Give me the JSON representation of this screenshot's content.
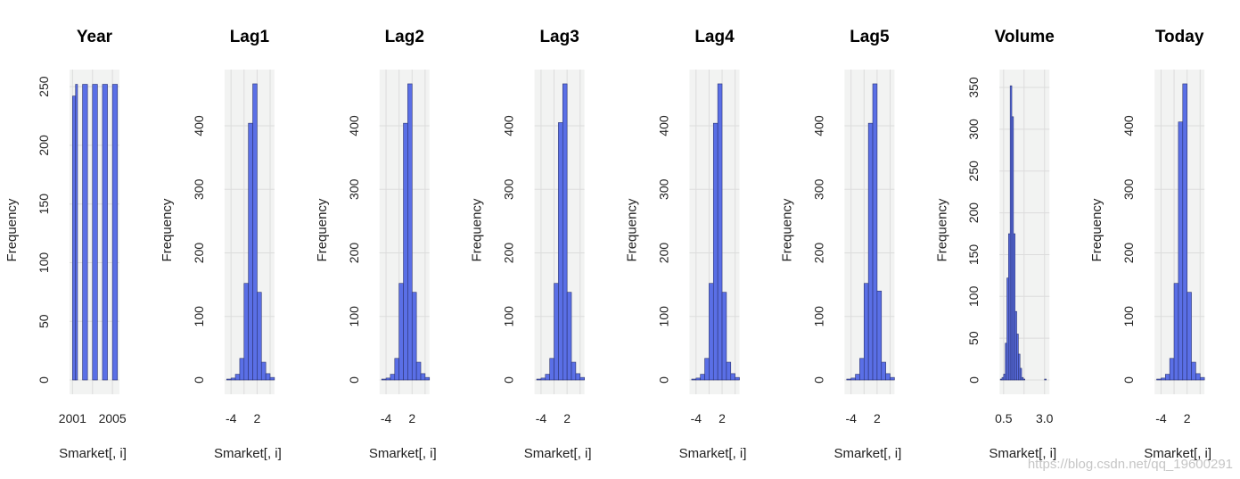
{
  "watermark": "https://blog.csdn.net/qq_19600291",
  "colors": {
    "bar_fill": "#5a6fe6",
    "bar_stroke": "#2b3370",
    "panel_bg": "#f2f3f2",
    "grid": "#dcdcdc"
  },
  "chart_data": [
    {
      "type": "bar",
      "title": "Year",
      "xlabel": "Smarket[, i]",
      "ylabel": "Frequency",
      "xlim": [
        2000.7,
        2005.7
      ],
      "x_ticks": [
        2001,
        2005
      ],
      "x_tick_labels": [
        "2001",
        "2005"
      ],
      "ylim": [
        0,
        260
      ],
      "y_ticks": [
        0,
        50,
        100,
        150,
        200,
        250
      ],
      "bins": [
        [
          2001.0,
          2001.3
        ],
        [
          2001.3,
          2001.5
        ],
        [
          2002.0,
          2002.5
        ],
        [
          2003.0,
          2003.5
        ],
        [
          2004.0,
          2004.5
        ],
        [
          2005.0,
          2005.5
        ]
      ],
      "values": [
        242,
        252,
        252,
        252,
        252,
        252
      ]
    },
    {
      "type": "bar",
      "title": "Lag1",
      "xlabel": "Smarket[, i]",
      "ylabel": "Frequency",
      "xlim": [
        -5.5,
        6
      ],
      "x_ticks": [
        -4,
        2
      ],
      "x_tick_labels": [
        "-4",
        "2"
      ],
      "ylim": [
        0,
        480
      ],
      "y_ticks": [
        0,
        100,
        200,
        300,
        400
      ],
      "bin_start": -5,
      "bin_width": 1,
      "values": [
        1,
        3,
        9,
        34,
        152,
        404,
        466,
        138,
        28,
        10,
        4
      ]
    },
    {
      "type": "bar",
      "title": "Lag2",
      "xlabel": "Smarket[, i]",
      "ylabel": "Frequency",
      "xlim": [
        -5.5,
        6
      ],
      "x_ticks": [
        -4,
        2
      ],
      "x_tick_labels": [
        "-4",
        "2"
      ],
      "ylim": [
        0,
        480
      ],
      "y_ticks": [
        0,
        100,
        200,
        300,
        400
      ],
      "bin_start": -5,
      "bin_width": 1,
      "values": [
        1,
        3,
        9,
        34,
        152,
        404,
        466,
        138,
        28,
        10,
        4
      ]
    },
    {
      "type": "bar",
      "title": "Lag3",
      "xlabel": "Smarket[, i]",
      "ylabel": "Frequency",
      "xlim": [
        -5.5,
        6
      ],
      "x_ticks": [
        -4,
        2
      ],
      "x_tick_labels": [
        "-4",
        "2"
      ],
      "ylim": [
        0,
        480
      ],
      "y_ticks": [
        0,
        100,
        200,
        300,
        400
      ],
      "bin_start": -5,
      "bin_width": 1,
      "values": [
        1,
        3,
        9,
        34,
        152,
        405,
        466,
        138,
        28,
        10,
        4
      ]
    },
    {
      "type": "bar",
      "title": "Lag4",
      "xlabel": "Smarket[, i]",
      "ylabel": "Frequency",
      "xlim": [
        -5.5,
        6
      ],
      "x_ticks": [
        -4,
        2
      ],
      "x_tick_labels": [
        "-4",
        "2"
      ],
      "ylim": [
        0,
        480
      ],
      "y_ticks": [
        0,
        100,
        200,
        300,
        400
      ],
      "bin_start": -5,
      "bin_width": 1,
      "values": [
        1,
        3,
        9,
        34,
        152,
        404,
        466,
        138,
        28,
        10,
        4
      ]
    },
    {
      "type": "bar",
      "title": "Lag5",
      "xlabel": "Smarket[, i]",
      "ylabel": "Frequency",
      "xlim": [
        -5.5,
        6
      ],
      "x_ticks": [
        -4,
        2
      ],
      "x_tick_labels": [
        "-4",
        "2"
      ],
      "ylim": [
        0,
        480
      ],
      "y_ticks": [
        0,
        100,
        200,
        300,
        400
      ],
      "bin_start": -5,
      "bin_width": 1,
      "values": [
        1,
        3,
        9,
        34,
        152,
        404,
        466,
        140,
        28,
        10,
        4
      ]
    },
    {
      "type": "bar",
      "title": "Volume",
      "xlabel": "Smarket[, i]",
      "ylabel": "Frequency",
      "xlim": [
        0.25,
        3.3
      ],
      "x_ticks": [
        0.5,
        3.0
      ],
      "x_tick_labels": [
        "0.5",
        "3.0"
      ],
      "ylim": [
        0,
        365
      ],
      "y_ticks": [
        0,
        50,
        100,
        150,
        200,
        250,
        300,
        350
      ],
      "bin_start": 0.3,
      "bin_width": 0.1,
      "values": [
        1,
        3,
        7,
        44,
        122,
        175,
        352,
        315,
        175,
        82,
        55,
        31,
        14,
        3,
        1,
        0,
        0,
        0,
        0,
        0,
        0,
        0,
        0,
        0,
        0,
        0,
        0,
        1
      ]
    },
    {
      "type": "bar",
      "title": "Today",
      "xlabel": "Smarket[, i]",
      "ylabel": "Frequency",
      "xlim": [
        -5.5,
        6
      ],
      "x_ticks": [
        -4,
        2
      ],
      "x_tick_labels": [
        "-4",
        "2"
      ],
      "ylim": [
        0,
        480
      ],
      "y_ticks": [
        0,
        100,
        200,
        300,
        400
      ],
      "bin_start": -5,
      "bin_width": 1,
      "values": [
        1,
        3,
        9,
        34,
        152,
        406,
        466,
        138,
        28,
        10,
        4
      ]
    }
  ]
}
